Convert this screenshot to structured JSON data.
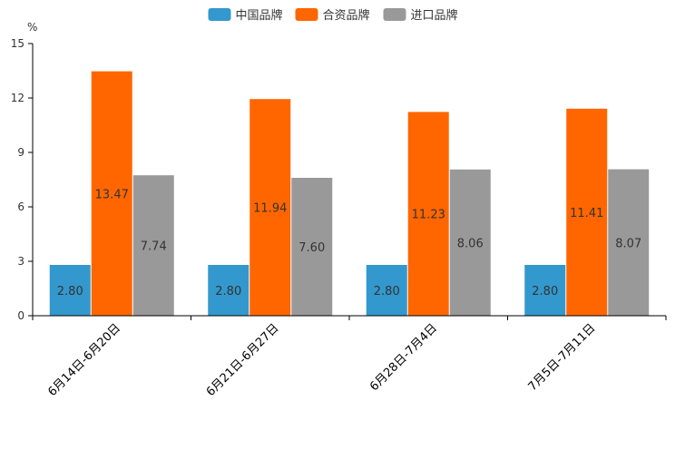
{
  "chart_data": {
    "type": "bar",
    "title": "",
    "xlabel": "",
    "ylabel": "%",
    "ylim": [
      0,
      15
    ],
    "yticks": [
      "0",
      "3",
      "6",
      "9",
      "12",
      "15"
    ],
    "categories": [
      "6月14日-6月20日",
      "6月21日-6月27日",
      "6月28日-7月4日",
      "7月5日-7月11日"
    ],
    "series": [
      {
        "name": "中国品牌",
        "color": "#3398cd",
        "values": [
          2.8,
          2.8,
          2.8,
          2.8
        ],
        "labels": [
          "2.80",
          "2.80",
          "2.80",
          "2.80"
        ]
      },
      {
        "name": "合资品牌",
        "color": "#ff6600",
        "values": [
          13.47,
          11.94,
          11.23,
          11.41
        ],
        "labels": [
          "13.47",
          "11.94",
          "11.23",
          "11.41"
        ]
      },
      {
        "name": "进口品牌",
        "color": "#999999",
        "values": [
          7.74,
          7.6,
          8.06,
          8.07
        ],
        "labels": [
          "7.74",
          "7.60",
          "8.06",
          "8.07"
        ]
      }
    ],
    "legend": "top-center",
    "grid": false
  }
}
